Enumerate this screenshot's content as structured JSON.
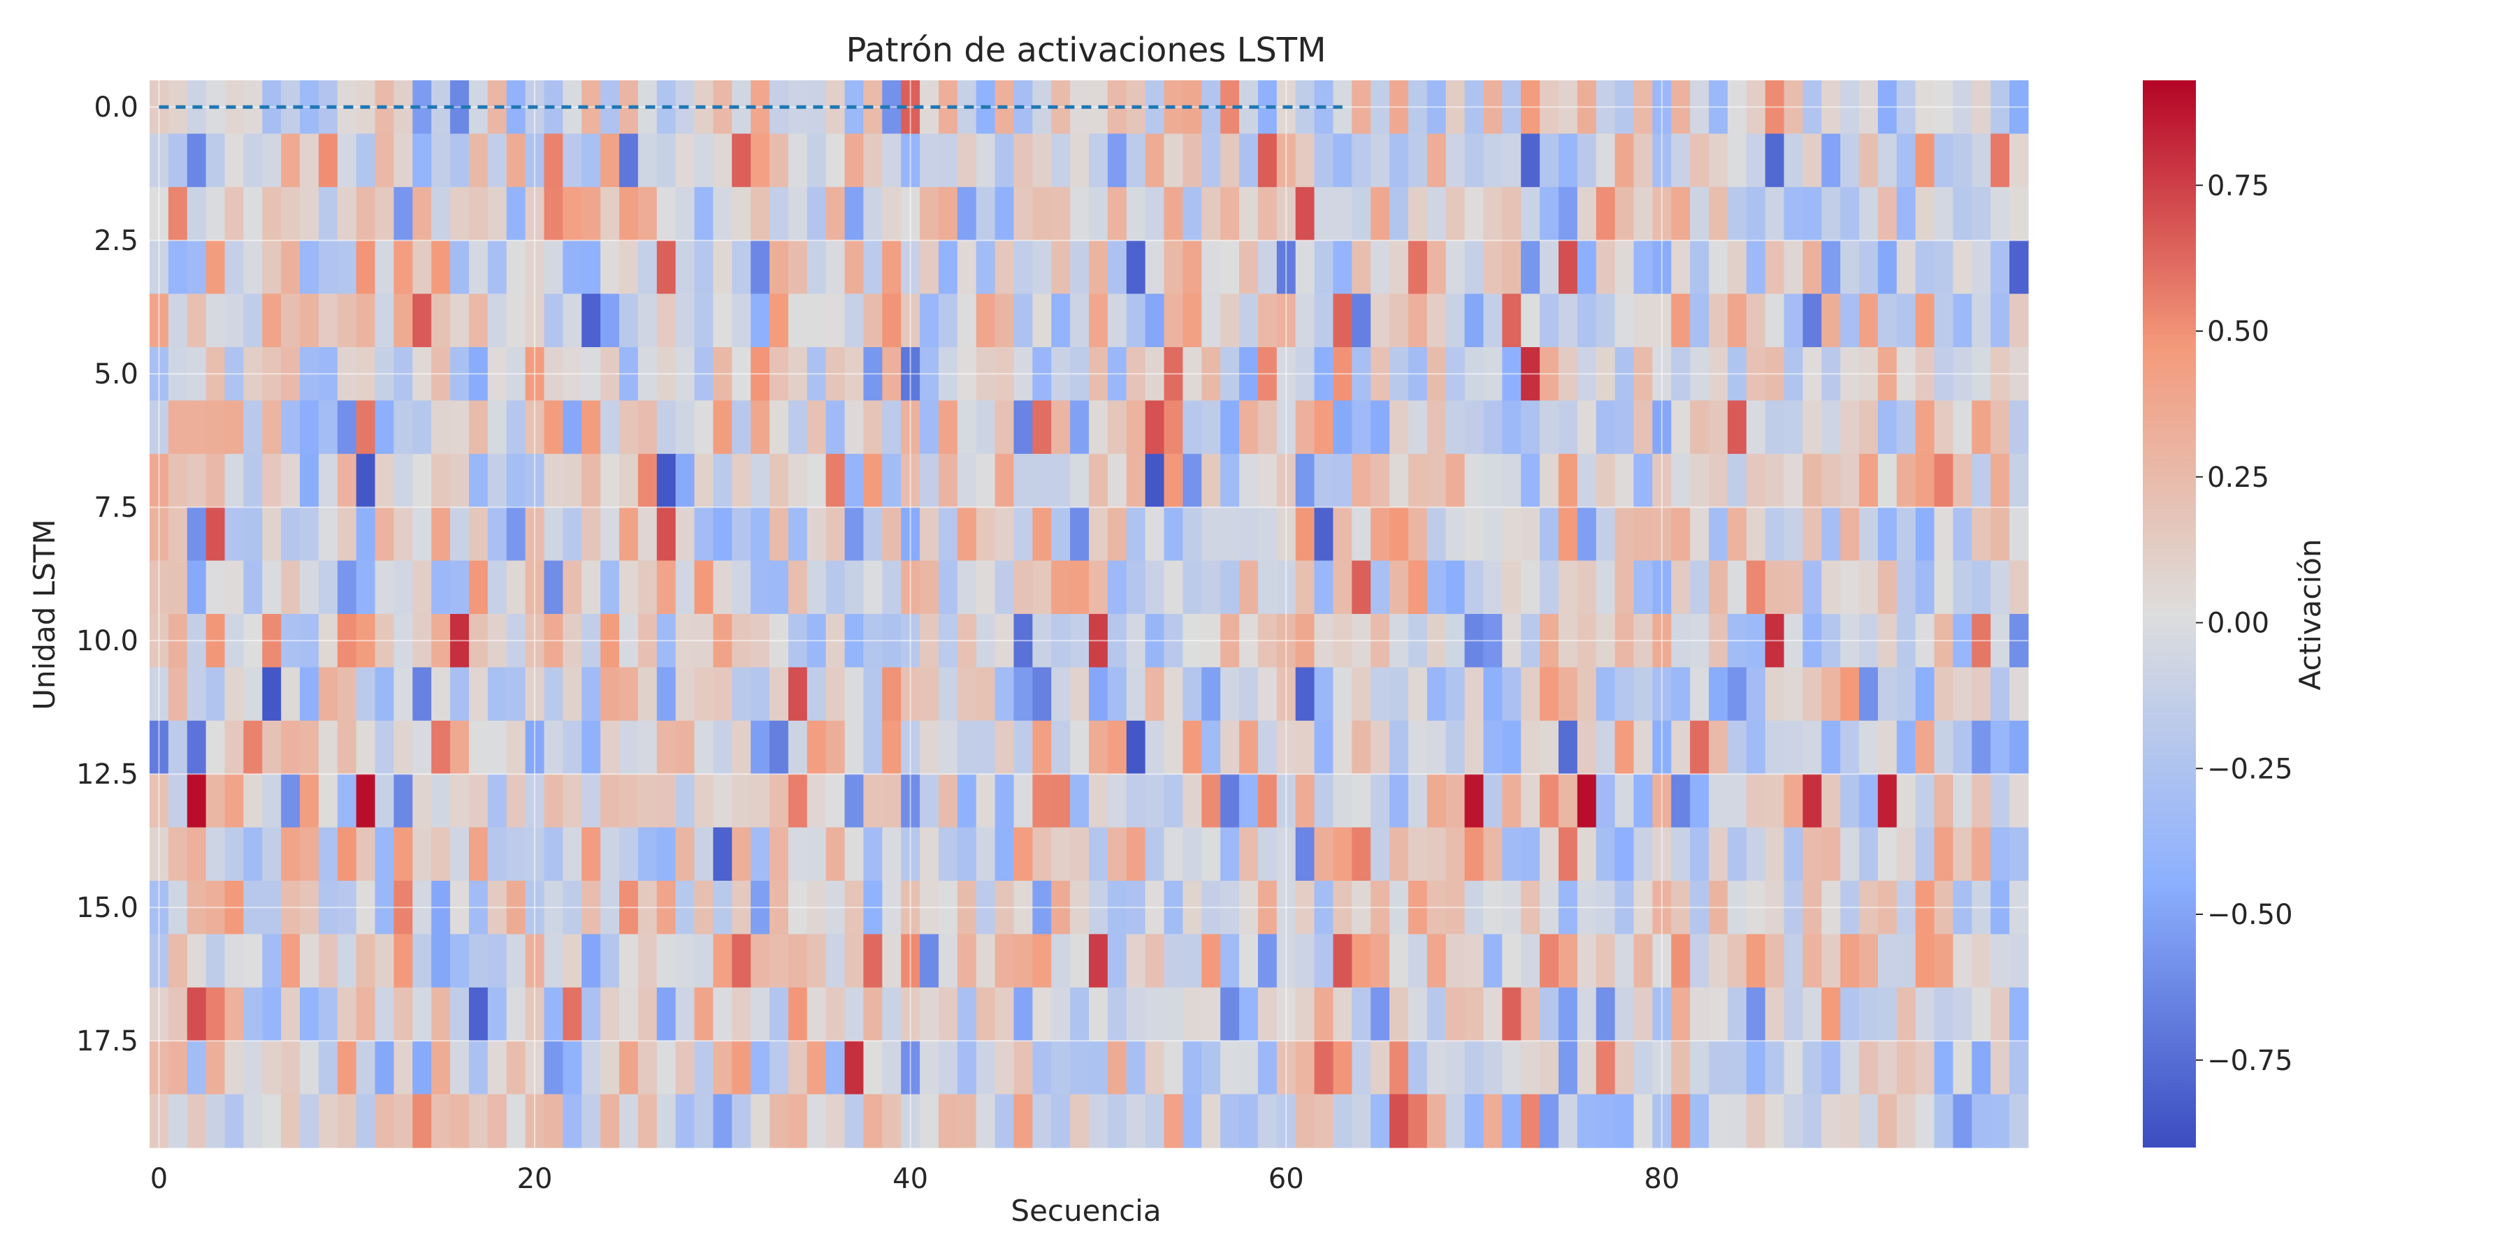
{
  "chart_data": {
    "type": "heatmap",
    "title": "Patrón de activaciones LSTM",
    "xlabel": "Secuencia",
    "ylabel": "Unidad LSTM",
    "colorbar_label": "Activación",
    "colormap": "coolwarm",
    "n_rows": 20,
    "n_cols": 100,
    "vmin": -0.9,
    "vmax": 0.93,
    "x_ticks": [
      0,
      20,
      40,
      60,
      80
    ],
    "x_tick_labels": [
      "0",
      "20",
      "40",
      "60",
      "80"
    ],
    "y_ticks": [
      0.0,
      2.5,
      5.0,
      7.5,
      10.0,
      12.5,
      15.0,
      17.5
    ],
    "y_tick_labels": [
      "0.0",
      "2.5",
      "5.0",
      "7.5",
      "10.0",
      "12.5",
      "15.0",
      "17.5"
    ],
    "colorbar_ticks": [
      -0.75,
      -0.5,
      -0.25,
      0.0,
      0.25,
      0.5,
      0.75
    ],
    "colorbar_tick_labels": [
      "−0.75",
      "−0.50",
      "−0.25",
      "0.00",
      "0.25",
      "0.50",
      "0.75"
    ],
    "grid": true,
    "overlay_line": {
      "color": "#1f77b4",
      "style": "dashed",
      "x_range": [
        0,
        63
      ],
      "y": 0.0
    },
    "notable_cells": [
      {
        "row": 12.5,
        "col": 2,
        "value": 0.9
      },
      {
        "row": 12.5,
        "col": 11,
        "value": 0.9
      },
      {
        "row": 12.5,
        "col": 70,
        "value": 0.88
      },
      {
        "row": 12.5,
        "col": 76,
        "value": 0.9
      },
      {
        "row": 12.5,
        "col": 92,
        "value": 0.85
      },
      {
        "row": 10,
        "col": 50,
        "value": 0.75
      },
      {
        "row": 1.5,
        "col": 61,
        "value": 0.7
      },
      {
        "row": 3,
        "col": 27,
        "value": 0.65
      },
      {
        "row": 3,
        "col": 75,
        "value": 0.7
      },
      {
        "row": 7,
        "col": 11,
        "value": -0.85
      },
      {
        "row": 7,
        "col": 27,
        "value": -0.85
      },
      {
        "row": 7,
        "col": 53,
        "value": -0.85
      },
      {
        "row": 11,
        "col": 6,
        "value": -0.85
      },
      {
        "row": 11,
        "col": 61,
        "value": -0.8
      },
      {
        "row": 12,
        "col": 52,
        "value": -0.85
      },
      {
        "row": 3,
        "col": 99,
        "value": -0.8
      },
      {
        "row": 3,
        "col": 52,
        "value": -0.8
      }
    ]
  }
}
